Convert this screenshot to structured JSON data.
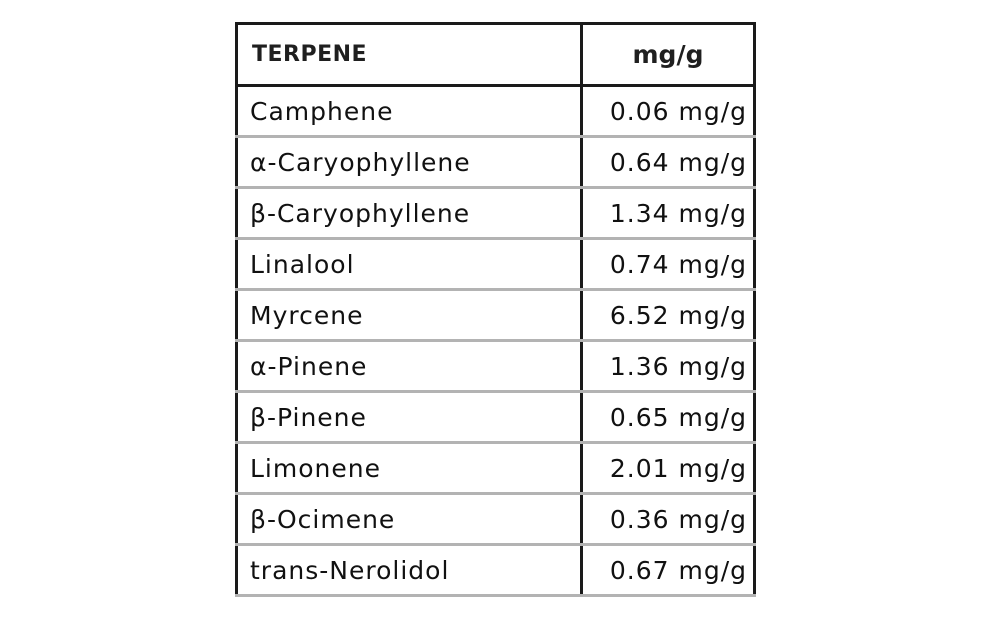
{
  "table": {
    "headers": {
      "name": "TERPENE",
      "value": "mg/g"
    },
    "rows": [
      {
        "name": "Camphene",
        "value": "0.06 mg/g"
      },
      {
        "name": "α-Caryophyllene",
        "value": "0.64 mg/g"
      },
      {
        "name": "β-Caryophyllene",
        "value": "1.34 mg/g"
      },
      {
        "name": "Linalool",
        "value": "0.74 mg/g"
      },
      {
        "name": "Myrcene",
        "value": "6.52 mg/g"
      },
      {
        "name": "α-Pinene",
        "value": "1.36 mg/g"
      },
      {
        "name": "β-Pinene",
        "value": "0.65 mg/g"
      },
      {
        "name": "Limonene",
        "value": "2.01 mg/g"
      },
      {
        "name": "β-Ocimene",
        "value": "0.36 mg/g"
      },
      {
        "name": "trans-Nerolidol",
        "value": "0.67 mg/g"
      }
    ]
  },
  "colors": {
    "border_dark": "#1a1a1a",
    "row_divider": "#b3b3b3",
    "text": "#111111",
    "background": "#ffffff"
  }
}
